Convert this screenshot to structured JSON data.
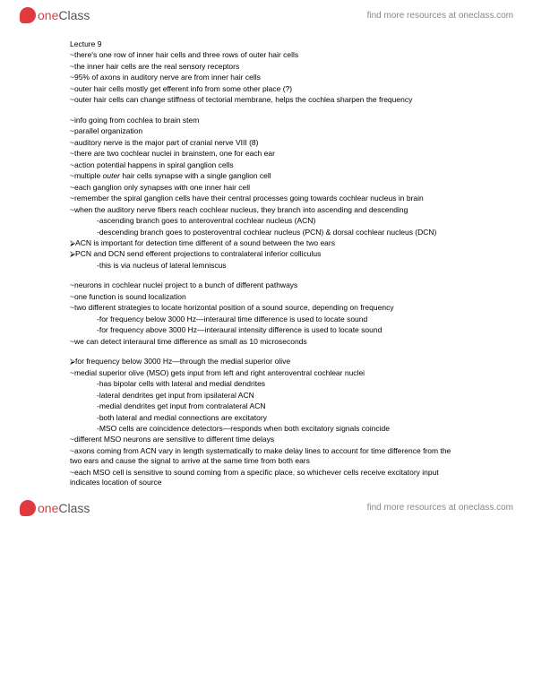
{
  "brand": {
    "logo_one": "one",
    "logo_class": "Class",
    "tagline": "find more resources at oneclass.com"
  },
  "doc": {
    "title": "Lecture 9",
    "p1": [
      "~there's one row of inner hair cells and three rows of outer hair cells",
      "~the inner hair cells are the real sensory receptors",
      "~95% of axons in auditory nerve are from inner hair cells",
      "~outer hair cells mostly get efferent info from some other place (?)",
      "~outer hair cells can change stiffness of tectorial membrane, helps the cochlea sharpen the frequency"
    ],
    "p2": [
      "~info going from cochlea to brain stem",
      "~parallel organization",
      "~auditory nerve is the major part of cranial nerve VIII (8)",
      "~there are two cochlear nuclei in brainstem, one for each ear",
      "~action potential happens in spiral ganglion cells"
    ],
    "p2_italic": "~multiple outer hair cells synapse with a single ganglion cell",
    "p2b": [
      "~each ganglion only synapses with one inner hair cell",
      "~remember the spiral ganglion cells have their central processes going towards cochlear nucleus in brain",
      "~when the auditory nerve fibers reach cochlear nucleus, they branch into ascending and descending"
    ],
    "p2_ind": [
      "-ascending branch goes to anteroventral cochlear nucleus (ACN)",
      "-descending branch goes to posteroventral cochlear nucleus (PCN) & dorsal cochlear nucleus (DCN)"
    ],
    "p2c": [
      "⮚ACN is important for detection time different of a sound between the two ears",
      "⮚PCN and DCN send efferent projections to contralateral inferior colliculus"
    ],
    "p2c_ind": "-this is via nucleus of lateral lemniscus",
    "p3": [
      "~neurons in cochlear nuclei project to a bunch of different pathways",
      "~one function is sound localization",
      "~two different strategies to locate horizontal position of a sound source, depending on frequency"
    ],
    "p3_ind": [
      "-for frequency below 3000 Hz—interaural time difference is used to locate sound",
      "-for frequency above 3000 Hz—interaural intensity difference is used to locate sound"
    ],
    "p3b": "~we can detect interaural time difference as small as 10 microseconds",
    "p4a": "⮚for frequency below 3000 Hz—through the medial superior olive",
    "p4b": "~medial superior olive (MSO) gets input from left and right anteroventral cochlear nuclei",
    "p4_ind": [
      "-has bipolar cells with lateral and medial dendrites",
      "-lateral dendrites get input from ipsilateral ACN",
      "-medial dendrites get input from contralateral ACN",
      "-both lateral and medial connections are excitatory",
      "-MSO cells are coincidence detectors—responds when both excitatory signals coincide"
    ],
    "p4c": [
      "~different MSO neurons are sensitive to different time delays",
      "~axons coming from ACN vary in length systematically to make delay lines to account for time difference from the two ears and cause the signal to arrive at the same time from both ears",
      "~each MSO cell is sensitive to sound coming from a specific place, so whichever cells receive excitatory input indicates location of source"
    ]
  }
}
